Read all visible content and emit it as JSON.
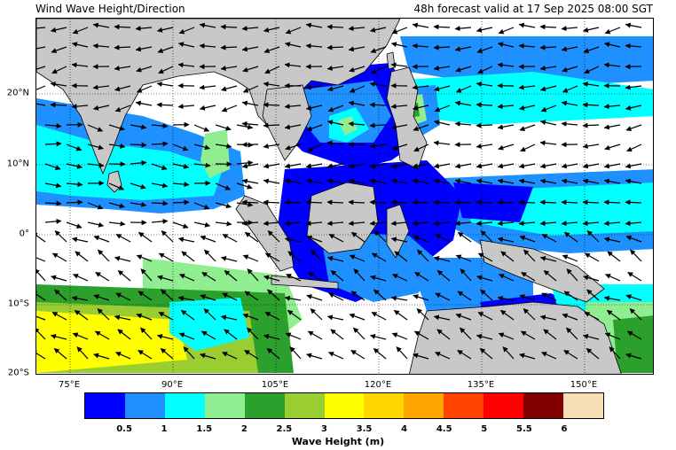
{
  "header": {
    "title": "Wind Wave Height/Direction",
    "valid": "48h forecast valid at 17 Sep 2025 08:00 SGT"
  },
  "map": {
    "lat_labels": [
      "20°N",
      "10°N",
      "0°",
      "10°S",
      "20°S"
    ],
    "lon_labels": [
      "75°E",
      "90°E",
      "105°E",
      "120°E",
      "135°E",
      "150°E"
    ],
    "land_color": "#c8c8c8",
    "grid_style": "dotted"
  },
  "legend": {
    "title": "Wave Height (m)",
    "ticks": [
      "0.5",
      "1",
      "1.5",
      "2",
      "2.5",
      "3",
      "3.5",
      "4",
      "4.5",
      "5",
      "5.5",
      "6"
    ],
    "colors": [
      "#0000ff",
      "#1e90ff",
      "#00ffff",
      "#90ee90",
      "#2ca02c",
      "#9acd32",
      "#ffff00",
      "#ffd700",
      "#ffa500",
      "#ff4500",
      "#ff0000",
      "#800000",
      "#f5deb3"
    ]
  }
}
